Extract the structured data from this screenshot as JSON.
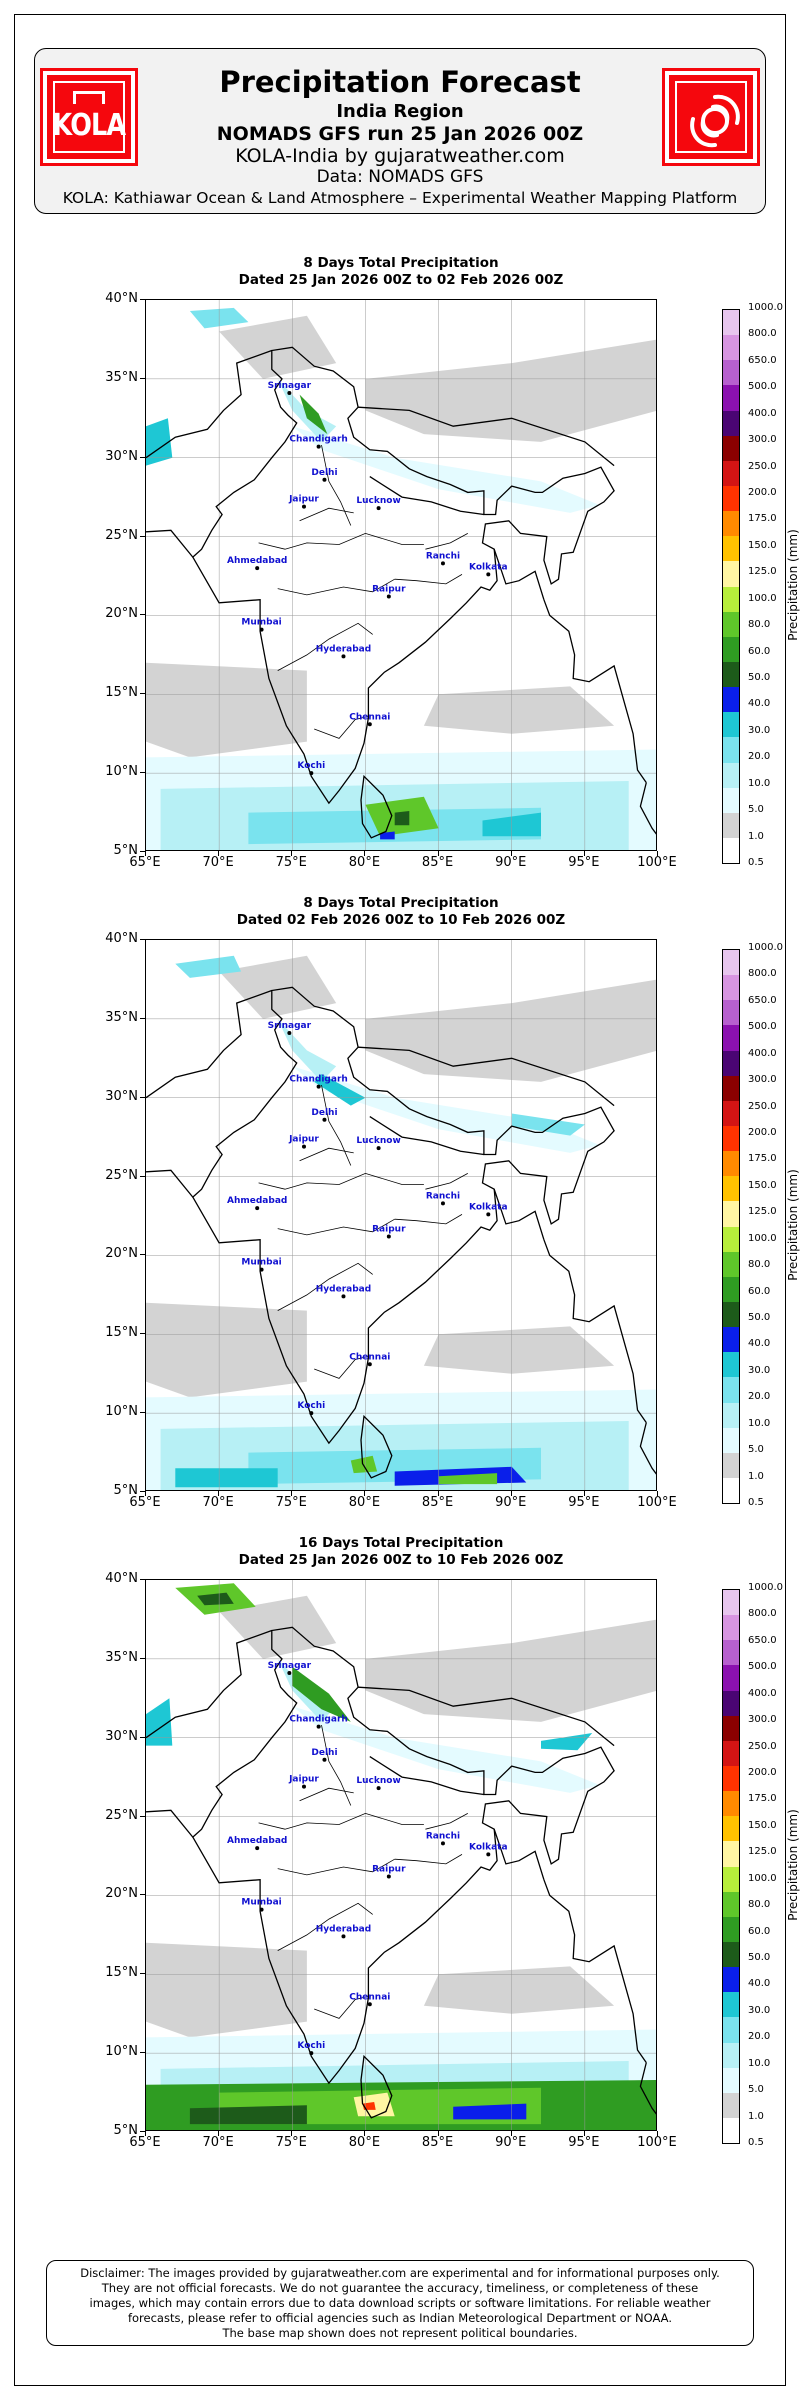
{
  "header": {
    "title": "Precipitation Forecast",
    "region": "India Region",
    "run": "NOMADS GFS run 25 Jan 2026 00Z",
    "brand": "KOLA-India by gujaratweather.com",
    "source": "Data: NOMADS GFS",
    "platform": "KOLA: Kathiawar Ocean & Land Atmosphere – Experimental Weather Mapping Platform",
    "logo_left_text": "KOLA",
    "logo_left_icon": "kola-house-icon",
    "logo_right_icon": "cyclone-swirl-icon"
  },
  "axes": {
    "lat_labels": [
      "40°N",
      "35°N",
      "30°N",
      "25°N",
      "20°N",
      "15°N",
      "10°N",
      "5°N"
    ],
    "lon_labels": [
      "65°E",
      "70°E",
      "75°E",
      "80°E",
      "85°E",
      "90°E",
      "95°E",
      "100°E"
    ]
  },
  "colorbar": {
    "title": "Precipitation (mm)",
    "levels": [
      "1000.0",
      "800.0",
      "650.0",
      "500.0",
      "400.0",
      "300.0",
      "250.0",
      "200.0",
      "175.0",
      "150.0",
      "125.0",
      "100.0",
      "80.0",
      "60.0",
      "50.0",
      "40.0",
      "30.0",
      "20.0",
      "10.0",
      "5.0",
      "1.0",
      "0.5"
    ],
    "colors": [
      "#e7c6ee",
      "#d795e1",
      "#b760cf",
      "#8b11b0",
      "#4a0573",
      "#8b0000",
      "#d31414",
      "#ff3300",
      "#ff8a00",
      "#ffc200",
      "#fff6a3",
      "#b7ee3b",
      "#5fc72a",
      "#2f9c22",
      "#1d5b1a",
      "#0a1fea",
      "#1ec7d4",
      "#7ae3ee",
      "#b7f0f5",
      "#e4fbff",
      "#d3d3d3",
      "#ffffff"
    ]
  },
  "cities": [
    {
      "name": "Srinagar",
      "lon": 74.8,
      "lat": 34.1
    },
    {
      "name": "Chandigarh",
      "lon": 76.8,
      "lat": 30.7
    },
    {
      "name": "Delhi",
      "lon": 77.2,
      "lat": 28.6
    },
    {
      "name": "Jaipur",
      "lon": 75.8,
      "lat": 26.9
    },
    {
      "name": "Lucknow",
      "lon": 80.9,
      "lat": 26.8
    },
    {
      "name": "Ahmedabad",
      "lon": 72.6,
      "lat": 23.0
    },
    {
      "name": "Ranchi",
      "lon": 85.3,
      "lat": 23.3
    },
    {
      "name": "Kolkata",
      "lon": 88.4,
      "lat": 22.6
    },
    {
      "name": "Raipur",
      "lon": 81.6,
      "lat": 21.2
    },
    {
      "name": "Mumbai",
      "lon": 72.9,
      "lat": 19.1
    },
    {
      "name": "Hyderabad",
      "lon": 78.5,
      "lat": 17.4
    },
    {
      "name": "Chennai",
      "lon": 80.3,
      "lat": 13.1
    },
    {
      "name": "Kochi",
      "lon": 76.3,
      "lat": 10.0
    }
  ],
  "panels": [
    {
      "title": "8 Days Total Precipitation",
      "dates": "Dated 25 Jan 2026 00Z to 02 Feb 2026 00Z"
    },
    {
      "title": "8 Days Total Precipitation",
      "dates": "Dated 02 Feb 2026 00Z to 10 Feb 2026 00Z"
    },
    {
      "title": "16 Days Total Precipitation",
      "dates": "Dated 25 Jan 2026 00Z to 10 Feb 2026 00Z"
    }
  ],
  "disclaimer": [
    "Disclaimer: The images provided by gujaratweather.com are experimental and for informational purposes only.",
    "They are not official forecasts. We do not guarantee the accuracy, timeliness, or completeness of these",
    "images, which may contain errors due to data download scripts or software limitations. For reliable weather",
    "forecasts, please refer to official agencies such as Indian Meteorological Department or NOAA.",
    "The base map shown does not represent political boundaries."
  ]
}
